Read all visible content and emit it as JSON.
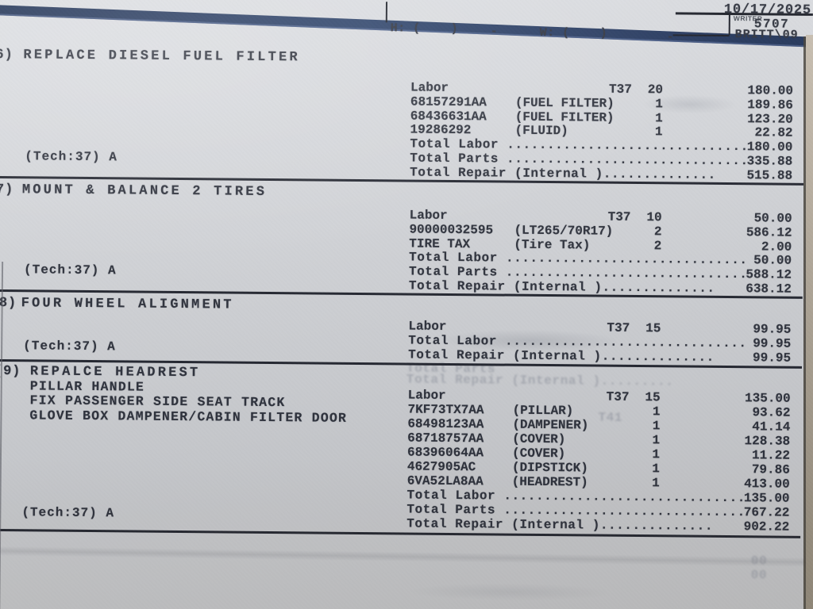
{
  "meta": {
    "date": "10/17/2025",
    "writer_label": "WRITER",
    "writer_id": "5707",
    "writer_name": "BRITT\\09"
  },
  "phone_fields": {
    "home": "H: (    )",
    "work": "W: (    )",
    "dash": "-"
  },
  "colors": {
    "paper": "#d5d7db",
    "ink": "#2e323d",
    "band_blue": "#1f3156",
    "rule": "#232630"
  },
  "sections": [
    {
      "number": "6)",
      "title_lines": [
        "REPLACE DIESEL FUEL FILTER"
      ],
      "tech_line": "(Tech:37) A",
      "items": [
        {
          "code": "Labor",
          "desc": "",
          "tcode": "T37",
          "qty": "20",
          "amount": "180.00"
        },
        {
          "code": "68157291AA",
          "desc": "(FUEL FILTER)",
          "tcode": "",
          "qty": "1",
          "amount": "189.86"
        },
        {
          "code": "68436631AA",
          "desc": "(FUEL FILTER)",
          "tcode": "",
          "qty": "1",
          "amount": "123.20"
        },
        {
          "code": "19286292",
          "desc": "(FLUID)",
          "tcode": "",
          "qty": "1",
          "amount": "22.82"
        }
      ],
      "totals": [
        {
          "label": "Total Labor ..............................",
          "amount": "180.00"
        },
        {
          "label": "Total Parts ..............................",
          "amount": "335.88"
        },
        {
          "label": "Total Repair (Internal )..............",
          "amount": "515.88"
        }
      ]
    },
    {
      "number": "7)",
      "title_lines": [
        "MOUNT & BALANCE 2 TIRES"
      ],
      "tech_line": "(Tech:37) A",
      "items": [
        {
          "code": "Labor",
          "desc": "",
          "tcode": "T37",
          "qty": "10",
          "amount": "50.00"
        },
        {
          "code": "90000032595",
          "desc": "(LT265/70R17)",
          "tcode": "",
          "qty": "2",
          "amount": "586.12"
        },
        {
          "code": "TIRE TAX",
          "desc": "(Tire Tax)",
          "tcode": "",
          "qty": "2",
          "amount": "2.00"
        }
      ],
      "totals": [
        {
          "label": "Total Labor ..............................",
          "amount": "50.00"
        },
        {
          "label": "Total Parts ..............................",
          "amount": "588.12"
        },
        {
          "label": "Total Repair (Internal )..............",
          "amount": "638.12"
        }
      ]
    },
    {
      "number": "(8)",
      "title_lines": [
        "FOUR WHEEL ALIGNMENT"
      ],
      "tech_line": "(Tech:37) A",
      "items": [
        {
          "code": "Labor",
          "desc": "",
          "tcode": "T37",
          "qty": "15",
          "amount": "99.95"
        }
      ],
      "totals": [
        {
          "label": "Total Labor ..............................",
          "amount": "99.95"
        },
        {
          "label": "Total Repair (Internal )..............",
          "amount": "99.95"
        }
      ]
    },
    {
      "number": "(9)",
      "title_lines": [
        "REPALCE HEADREST",
        "PILLAR HANDLE",
        "FIX PASSENGER SIDE SEAT TRACK",
        "GLOVE BOX DAMPENER/CABIN FILTER DOOR"
      ],
      "tech_line": "(Tech:37) A",
      "items": [
        {
          "code": "Labor",
          "desc": "",
          "tcode": "T37",
          "qty": "15",
          "amount": "135.00"
        },
        {
          "code": "7KF73TX7AA",
          "desc": "(PILLAR)",
          "tcode": "",
          "qty": "1",
          "amount": "93.62"
        },
        {
          "code": "68498123AA",
          "desc": "(DAMPENER)",
          "tcode": "",
          "qty": "1",
          "amount": "41.14"
        },
        {
          "code": "68718757AA",
          "desc": "(COVER)",
          "tcode": "",
          "qty": "1",
          "amount": "128.38"
        },
        {
          "code": "68396064AA",
          "desc": "(COVER)",
          "tcode": "",
          "qty": "1",
          "amount": "11.22"
        },
        {
          "code": "4627905AC",
          "desc": "(DIPSTICK)",
          "tcode": "",
          "qty": "1",
          "amount": "79.86"
        },
        {
          "code": "6VA52LA8AA",
          "desc": "(HEADREST)",
          "tcode": "",
          "qty": "1",
          "amount": "413.00"
        }
      ],
      "totals": [
        {
          "label": "Total Labor ..............................",
          "amount": "135.00"
        },
        {
          "label": "Total Parts ..............................",
          "amount": "767.22"
        },
        {
          "label": "Total Repair (Internal )..............",
          "amount": "902.22"
        }
      ]
    }
  ],
  "ghost_bleed": [
    {
      "text": "Total Parts"
    },
    {
      "text": "Total Repair (Internal )........."
    },
    {
      "text": "T41"
    },
    {
      "text": "00"
    },
    {
      "text": "00"
    }
  ]
}
